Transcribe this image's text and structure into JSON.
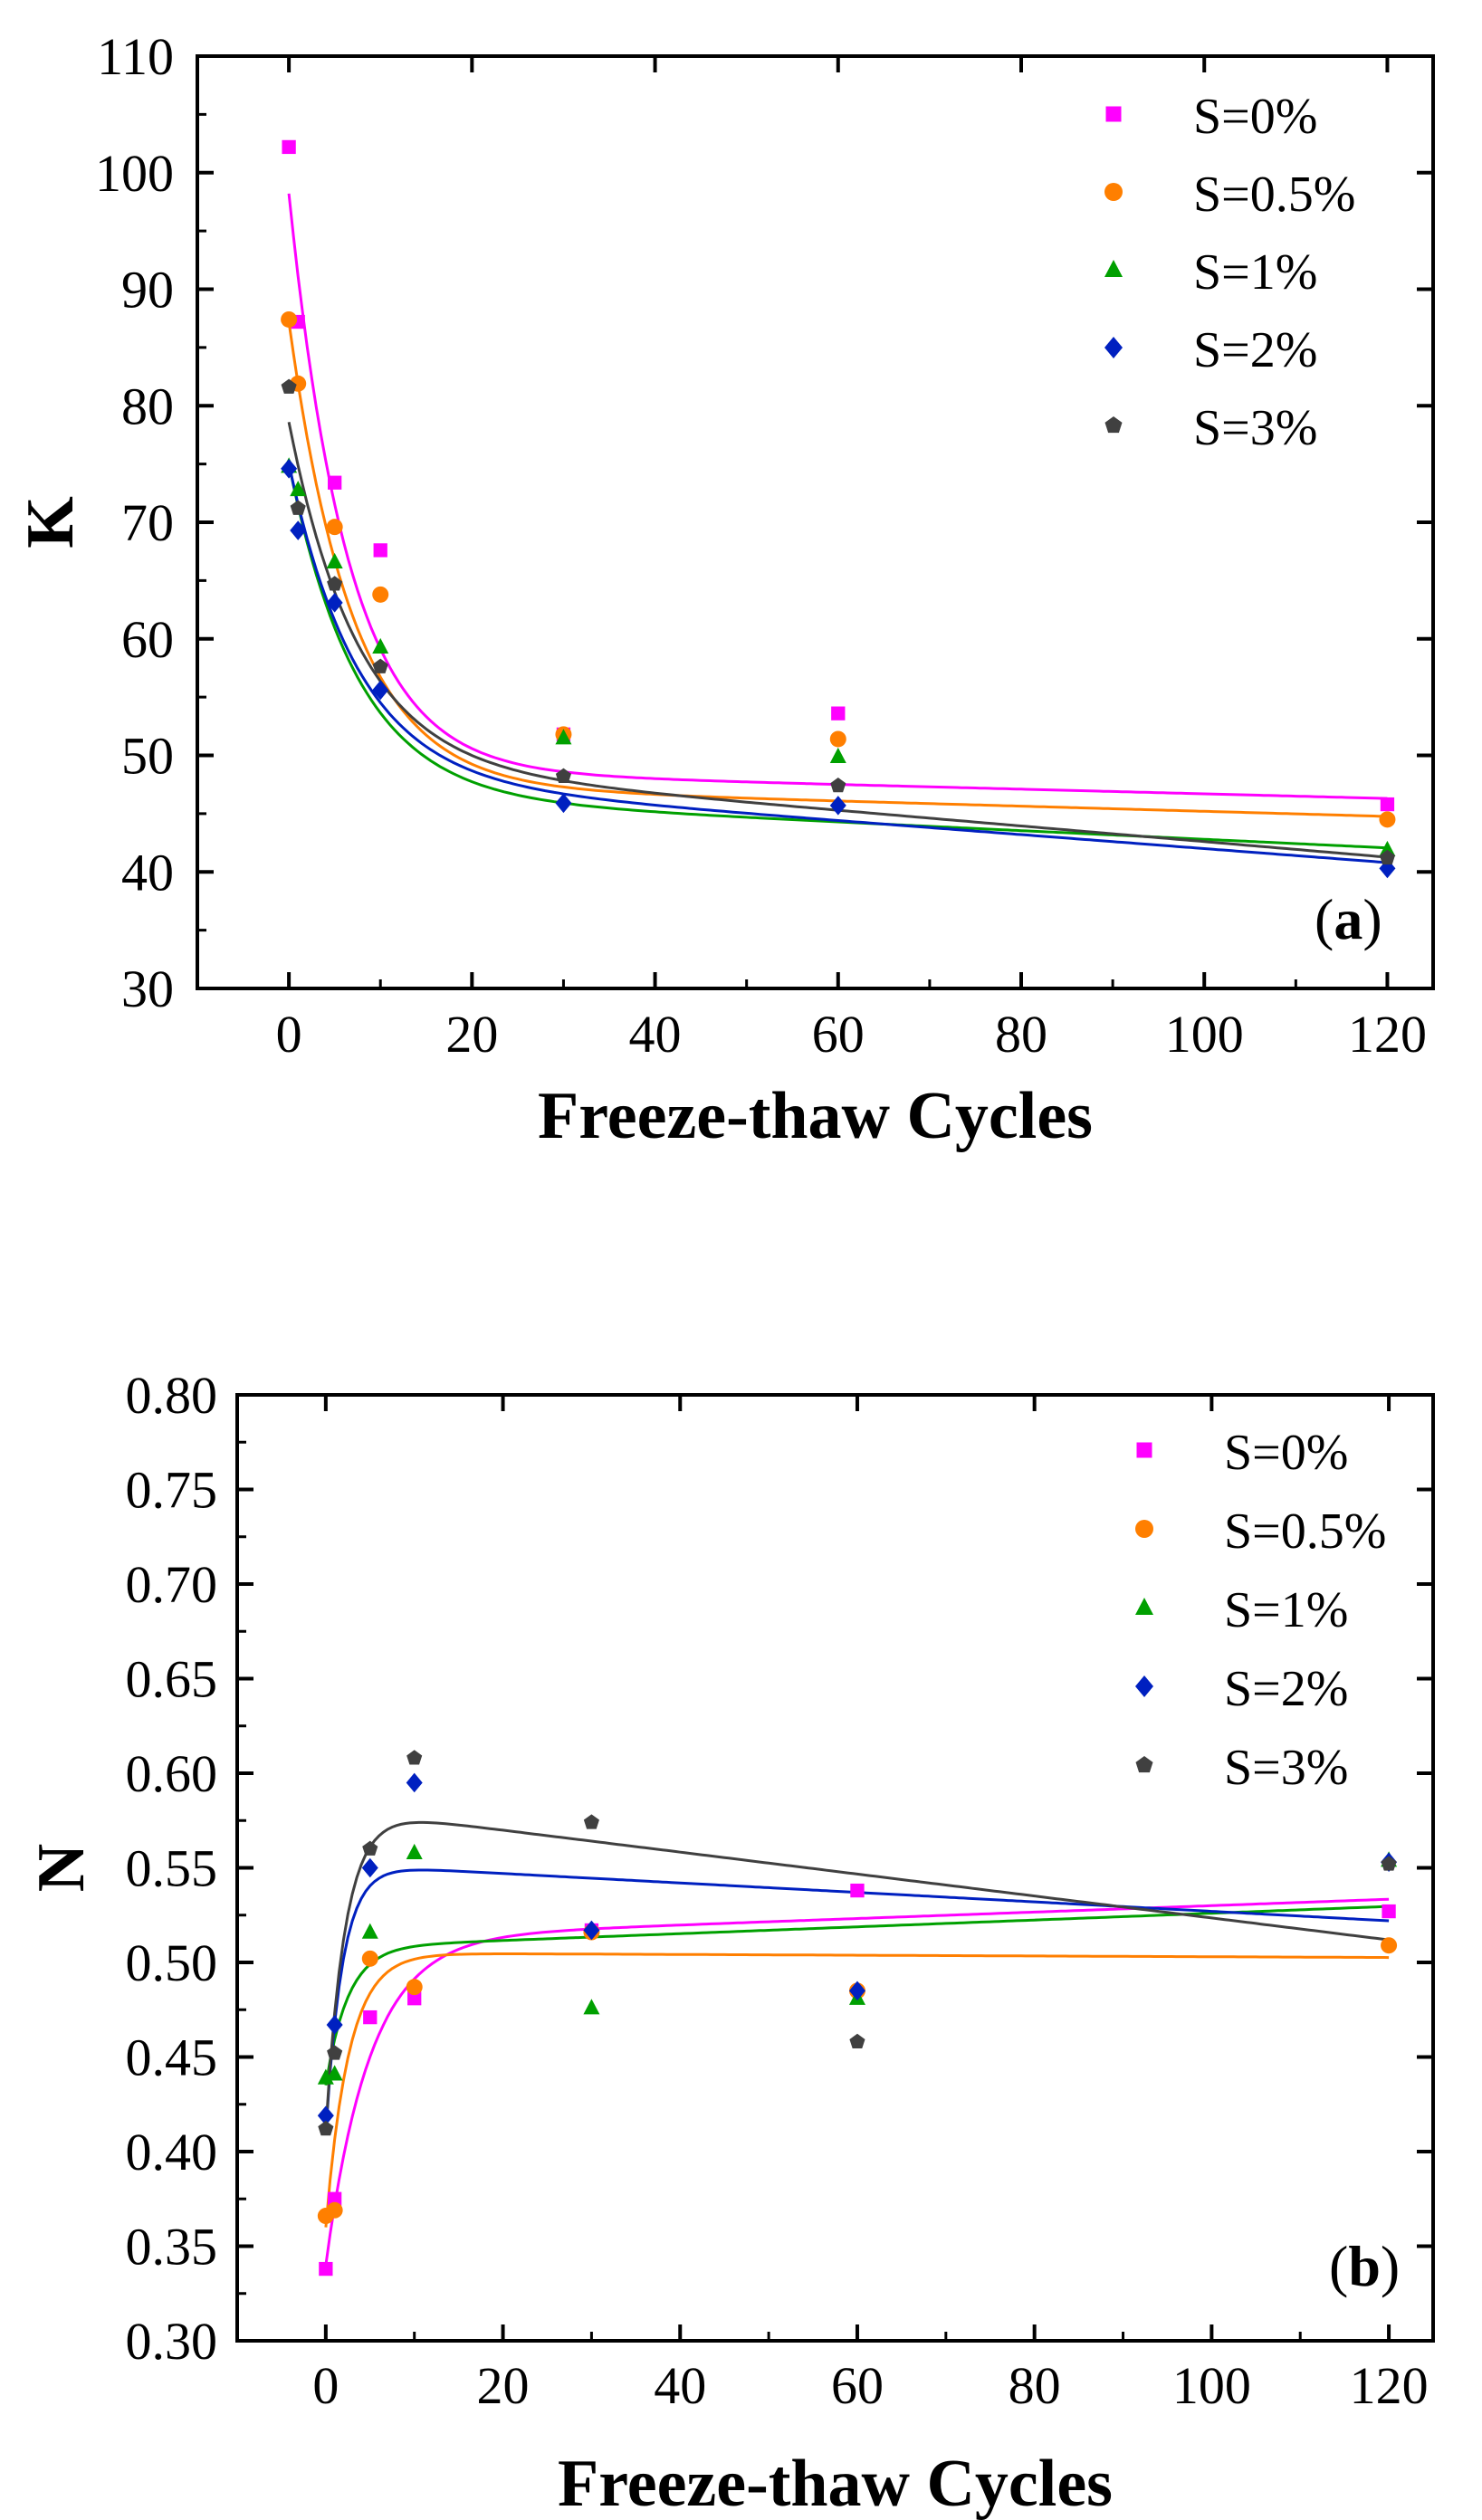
{
  "colors": {
    "S=0%": "#ff00ff",
    "S=0.5%": "#ff7f00",
    "S=1%": "#00a000",
    "S=2%": "#0020c0",
    "S=3%": "#404040"
  },
  "chart_data": [
    {
      "type": "scatter",
      "panel_label": "a",
      "xlabel": "Freeze-thaw Cycles",
      "ylabel": "K",
      "xlim": [
        -10,
        125
      ],
      "ylim": [
        30,
        110
      ],
      "xticks": [
        0,
        20,
        40,
        60,
        80,
        100,
        120
      ],
      "yticks": [
        30,
        40,
        50,
        60,
        70,
        80,
        90,
        100,
        110
      ],
      "legend_position": "top-right",
      "series": [
        {
          "name": "S=0%",
          "marker": "square",
          "x": [
            0,
            1,
            5,
            10,
            30,
            60,
            120
          ],
          "y": [
            102.2,
            87.2,
            73.4,
            67.6,
            51.8,
            53.6,
            45.8
          ],
          "fit": {
            "a": 48.7,
            "b": 49.5,
            "tau": 6.5,
            "c": -0.02
          }
        },
        {
          "name": "S=0.5%",
          "marker": "circle",
          "x": [
            0,
            1,
            5,
            10,
            30,
            60,
            120
          ],
          "y": [
            87.4,
            81.9,
            69.6,
            63.8,
            51.8,
            51.4,
            44.5
          ],
          "fit": {
            "a": 47.4,
            "b": 39.8,
            "tau": 7.0,
            "c": -0.022
          }
        },
        {
          "name": "S=1%",
          "marker": "triangle",
          "x": [
            0,
            1,
            5,
            10,
            30,
            60,
            120
          ],
          "y": [
            74.8,
            72.8,
            66.6,
            59.3,
            51.5,
            49.9,
            41.9
          ],
          "fit": {
            "a": 46.5,
            "b": 28.5,
            "tau": 7.5,
            "c": -0.037
          }
        },
        {
          "name": "S=2%",
          "marker": "diamond",
          "x": [
            0,
            1,
            5,
            10,
            30,
            60,
            120
          ],
          "y": [
            74.6,
            69.3,
            63.1,
            55.6,
            45.9,
            45.7,
            40.3
          ],
          "fit": {
            "a": 48.0,
            "b": 27.0,
            "tau": 7.5,
            "c": -0.06
          }
        },
        {
          "name": "S=3%",
          "marker": "pentagon",
          "x": [
            0,
            1,
            5,
            10,
            30,
            60,
            120
          ],
          "y": [
            81.6,
            71.2,
            64.7,
            57.6,
            48.2,
            47.4,
            41.2
          ],
          "fit": {
            "a": 49.3,
            "b": 29.3,
            "tau": 7.5,
            "c": -0.067
          }
        }
      ]
    },
    {
      "type": "scatter",
      "panel_label": "b",
      "xlabel": "Freeze-thaw Cycles",
      "ylabel": "N",
      "xlim": [
        -10,
        125
      ],
      "ylim": [
        0.3,
        0.8
      ],
      "xticks": [
        0,
        20,
        40,
        60,
        80,
        100,
        120
      ],
      "yticks": [
        "0.30",
        "0.35",
        "0.40",
        "0.45",
        "0.50",
        "0.55",
        "0.60",
        "0.65",
        "0.70",
        "0.75",
        "0.80"
      ],
      "legend_position": "top-right",
      "series": [
        {
          "name": "S=0%",
          "marker": "square",
          "x": [
            0,
            1,
            5,
            10,
            30,
            60,
            120
          ],
          "y": [
            0.338,
            0.375,
            0.471,
            0.481,
            0.517,
            0.538,
            0.527
          ],
          "fit": {
            "a": 0.513,
            "b": 0.173,
            "tau": 5.0,
            "c": 0.00017
          }
        },
        {
          "name": "S=0.5%",
          "marker": "circle",
          "x": [
            0,
            1,
            5,
            10,
            30,
            60,
            120
          ],
          "y": [
            0.366,
            0.369,
            0.502,
            0.487,
            0.516,
            0.485,
            0.509
          ],
          "fit": {
            "a": 0.505,
            "b": 0.145,
            "tau": 2.6,
            "c": -2e-05
          }
        },
        {
          "name": "S=1%",
          "marker": "triangle",
          "x": [
            0,
            1,
            5,
            10,
            30,
            60,
            120
          ],
          "y": [
            0.439,
            0.441,
            0.516,
            0.558,
            0.476,
            0.481,
            0.554
          ],
          "fit": {
            "a": 0.508,
            "b": 0.073,
            "tau": 2.5,
            "c": 0.00018
          }
        },
        {
          "name": "S=2%",
          "marker": "diamond",
          "x": [
            0,
            1,
            5,
            10,
            30,
            60,
            120
          ],
          "y": [
            0.419,
            0.467,
            0.55,
            0.595,
            0.517,
            0.485,
            0.553
          ],
          "fit": {
            "a": 0.552,
            "b": 0.142,
            "tau": 1.9,
            "c": -0.00025
          }
        },
        {
          "name": "S=3%",
          "marker": "pentagon",
          "x": [
            0,
            1,
            5,
            10,
            30,
            60,
            120
          ],
          "y": [
            0.412,
            0.452,
            0.56,
            0.608,
            0.574,
            0.458,
            0.552
          ],
          "fit": {
            "a": 0.5815,
            "b": 0.17,
            "tau": 2.2,
            "c": -0.00058
          }
        }
      ]
    }
  ]
}
